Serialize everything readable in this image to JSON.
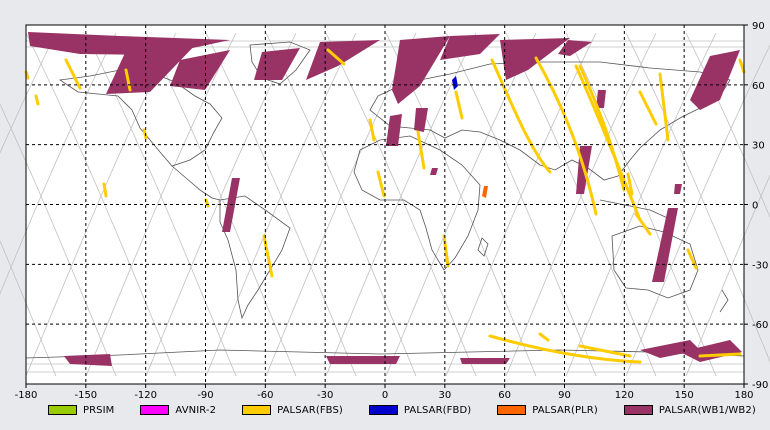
{
  "map": {
    "x_ticks": [
      "-180",
      "-150",
      "-120",
      "-90",
      "-60",
      "-30",
      "0",
      "30",
      "60",
      "90",
      "120",
      "150",
      "180"
    ],
    "y_ticks": [
      "90",
      "60",
      "30",
      "0",
      "-30",
      "-60",
      "-90"
    ],
    "x_range": [
      -180,
      180
    ],
    "y_range": [
      -90,
      90
    ]
  },
  "legend": [
    {
      "label": "PRSIM",
      "color": "#99cc00"
    },
    {
      "label": "AVNIR-2",
      "color": "#ff00ff"
    },
    {
      "label": "PALSAR(FBS)",
      "color": "#ffcc00"
    },
    {
      "label": "PALSAR(FBD)",
      "color": "#0000cc"
    },
    {
      "label": "PALSAR(PLR)",
      "color": "#ff6600"
    },
    {
      "label": "PALSAR(WB1/WB2)",
      "color": "#993366"
    }
  ],
  "colors": {
    "background": "#e7e9ec",
    "plot_background": "#ffffff",
    "grid": "#000000",
    "orbit_track": "#c0c0c0",
    "coastline": "#555555"
  }
}
